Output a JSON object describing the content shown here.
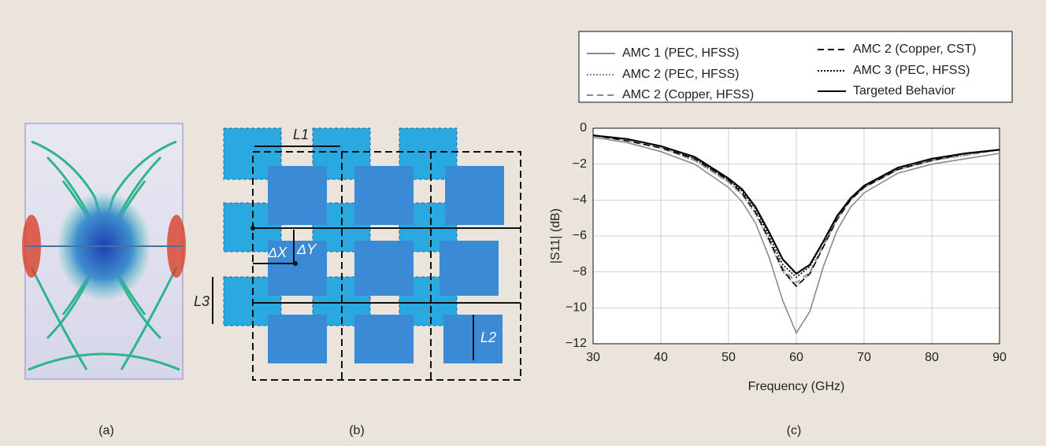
{
  "panels": {
    "a": "(a)",
    "b": "(b)",
    "c": "(c)"
  },
  "diagram": {
    "labels": {
      "l1": "L1",
      "l2": "L2",
      "l3": "L3",
      "dx": "ΔX",
      "dy": "ΔY"
    }
  },
  "chart_data": {
    "type": "line",
    "x_label": "Frequency (GHz)",
    "y_label": "|S11| (dB)",
    "x": [
      30,
      35,
      40,
      45,
      50,
      52,
      54,
      56,
      58,
      60,
      62,
      64,
      66,
      68,
      70,
      75,
      80,
      85,
      90
    ],
    "series": [
      {
        "name": "AMC 1 (PEC, HFSS)",
        "color": "#8a8a8a",
        "dash": "solid",
        "values": [
          -0.5,
          -0.8,
          -1.3,
          -2.0,
          -3.3,
          -4.1,
          -5.3,
          -7.2,
          -9.6,
          -11.4,
          -10.2,
          -7.7,
          -5.7,
          -4.4,
          -3.6,
          -2.5,
          -2.0,
          -1.7,
          -1.4
        ]
      },
      {
        "name": "AMC 2 (PEC, HFSS)",
        "color": "#8a8a8a",
        "dash": "dotted",
        "values": [
          -0.4,
          -0.7,
          -1.1,
          -1.8,
          -3.0,
          -3.7,
          -4.8,
          -6.3,
          -8.0,
          -8.8,
          -8.1,
          -6.6,
          -5.1,
          -4.0,
          -3.3,
          -2.3,
          -1.8,
          -1.5,
          -1.2
        ]
      },
      {
        "name": "AMC 2 (Copper, HFSS)",
        "color": "#8a8a8a",
        "dash": "dashed",
        "values": [
          -0.4,
          -0.7,
          -1.1,
          -1.8,
          -3.0,
          -3.7,
          -4.7,
          -6.2,
          -7.8,
          -8.6,
          -8.0,
          -6.5,
          -5.0,
          -4.0,
          -3.3,
          -2.3,
          -1.8,
          -1.5,
          -1.2
        ]
      },
      {
        "name": "AMC 2 (Copper, CST)",
        "color": "#000000",
        "dash": "dashed",
        "values": [
          -0.4,
          -0.7,
          -1.1,
          -1.7,
          -2.9,
          -3.6,
          -4.7,
          -6.2,
          -7.9,
          -8.8,
          -8.1,
          -6.6,
          -5.1,
          -4.0,
          -3.3,
          -2.3,
          -1.8,
          -1.4,
          -1.2
        ]
      },
      {
        "name": "AMC 3 (PEC, HFSS)",
        "color": "#000000",
        "dash": "dotted",
        "values": [
          -0.4,
          -0.6,
          -1.0,
          -1.7,
          -2.9,
          -3.5,
          -4.5,
          -6.0,
          -7.6,
          -8.3,
          -7.7,
          -6.3,
          -4.9,
          -3.9,
          -3.2,
          -2.2,
          -1.7,
          -1.4,
          -1.2
        ]
      },
      {
        "name": "Targeted Behavior",
        "color": "#000000",
        "dash": "solid",
        "values": [
          -0.4,
          -0.6,
          -1.0,
          -1.6,
          -2.8,
          -3.4,
          -4.4,
          -5.8,
          -7.3,
          -8.1,
          -7.6,
          -6.3,
          -4.9,
          -3.9,
          -3.2,
          -2.2,
          -1.7,
          -1.4,
          -1.2
        ]
      }
    ],
    "xlim": [
      30,
      90
    ],
    "xticks": [
      30,
      40,
      50,
      60,
      70,
      80,
      90
    ],
    "ylim": [
      -12,
      0
    ],
    "yticks": [
      0,
      {
        "value": -2,
        "label": "−2"
      },
      {
        "value": -4,
        "label": "−4"
      },
      {
        "value": -6,
        "label": "−6"
      },
      {
        "value": -8,
        "label": "−8"
      },
      {
        "value": -10,
        "label": "−10"
      },
      {
        "value": -12,
        "label": "−12"
      }
    ],
    "grid": true
  }
}
